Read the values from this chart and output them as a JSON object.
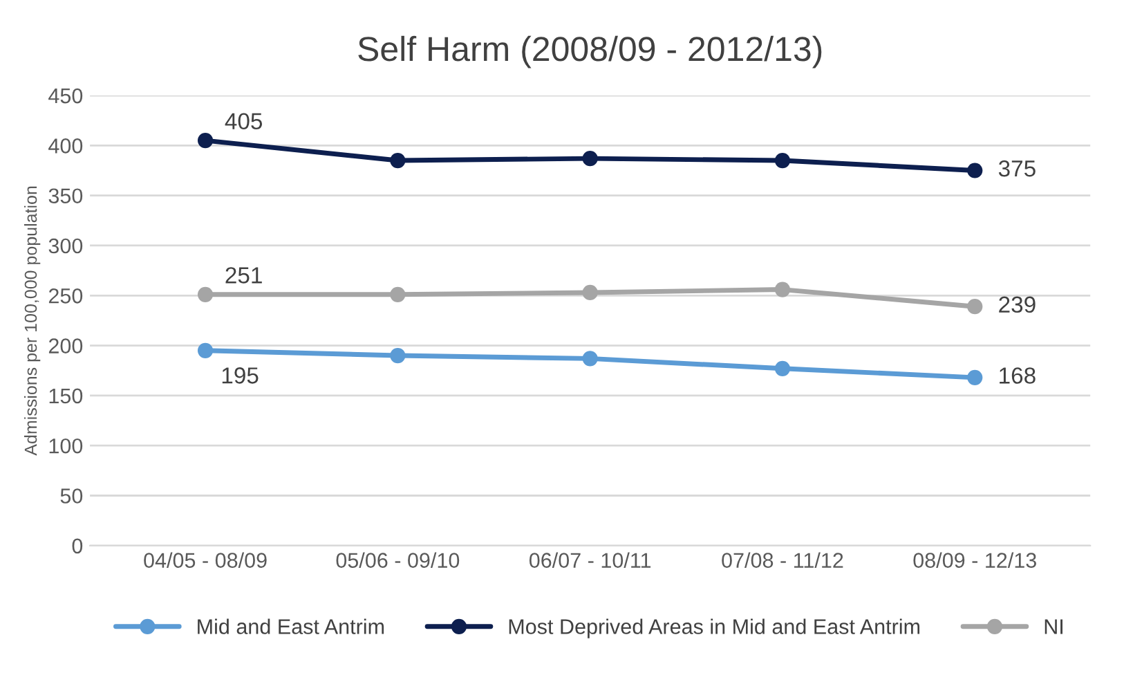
{
  "chart_data": {
    "type": "line",
    "title": "Self Harm (2008/09 - 2012/13)",
    "ylabel": "Admissions per 100,000 population",
    "categories": [
      "04/05 - 08/09",
      "05/06 - 09/10",
      "06/07 - 10/11",
      "07/08 - 11/12",
      "08/09 - 12/13"
    ],
    "series": [
      {
        "name": "Mid and East Antrim",
        "color": "#5b9bd5",
        "values": [
          195,
          190,
          187,
          177,
          168
        ],
        "value_labels": [
          "195",
          null,
          null,
          null,
          "168"
        ]
      },
      {
        "name": "Most Deprived Areas in Mid and East Antrim",
        "color": "#0d1f4f",
        "values": [
          405,
          385,
          387,
          385,
          375
        ],
        "value_labels": [
          "405",
          null,
          null,
          null,
          "375"
        ]
      },
      {
        "name": "NI",
        "color": "#a5a5a5",
        "values": [
          251,
          251,
          253,
          256,
          239
        ],
        "value_labels": [
          "251",
          null,
          null,
          null,
          "239"
        ]
      }
    ],
    "ylim": [
      0,
      450
    ],
    "yticks": [
      0,
      50,
      100,
      150,
      200,
      250,
      300,
      350,
      400,
      450
    ],
    "grid": "y",
    "legend": "bottom",
    "marker": "circle",
    "line_style": "solid"
  }
}
